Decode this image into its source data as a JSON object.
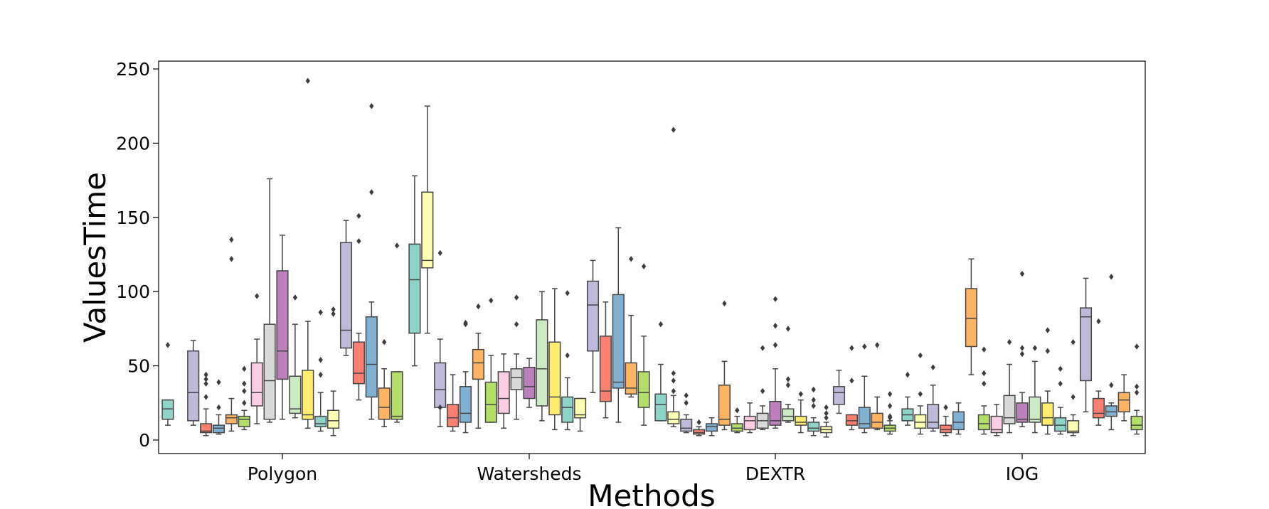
{
  "chart_data": {
    "type": "box",
    "xlabel": "Methods",
    "ylabel": "ValuesTime",
    "ylim": [
      -8,
      254
    ],
    "yticks": [
      0,
      50,
      100,
      150,
      200,
      250
    ],
    "categories": [
      "Polygon",
      "Watersheds",
      "DEXTR",
      "IOG"
    ],
    "legend": "none",
    "grid": false,
    "palette": [
      "#8dd3c7",
      "#ffffb3",
      "#bebada",
      "#fb8072",
      "#80b1d3",
      "#fdb462",
      "#b3de69",
      "#fccde5",
      "#d9d9d9",
      "#bc80bd",
      "#ccebc5",
      "#ffed6f"
    ],
    "groups": [
      {
        "category": "Polygon",
        "boxes": [
          {
            "min": 10,
            "q1": 14,
            "median": 21,
            "q3": 27,
            "max": 27,
            "outliers": [
              64
            ]
          },
          null,
          {
            "min": 10,
            "q1": 13,
            "median": 32,
            "q3": 60,
            "max": 67,
            "outliers": []
          },
          {
            "min": 3,
            "q1": 5,
            "median": 6,
            "q3": 11,
            "max": 21,
            "outliers": [
              29,
              38,
              41,
              44
            ]
          },
          {
            "min": 4,
            "q1": 5,
            "median": 8,
            "q3": 10,
            "max": 17,
            "outliers": [
              22,
              39
            ]
          },
          {
            "min": 6,
            "q1": 11,
            "median": 15,
            "q3": 17,
            "max": 28,
            "outliers": [
              122,
              135
            ]
          },
          {
            "min": 7,
            "q1": 9,
            "median": 14,
            "q3": 16,
            "max": 20,
            "outliers": [
              25,
              33,
              38,
              48
            ]
          },
          {
            "min": 11,
            "q1": 23,
            "median": 32,
            "q3": 52,
            "max": 68,
            "outliers": [
              97
            ]
          },
          {
            "min": 12,
            "q1": 14,
            "median": 40,
            "q3": 78,
            "max": 176,
            "outliers": []
          },
          {
            "min": 14,
            "q1": 41,
            "median": 60,
            "q3": 114,
            "max": 138,
            "outliers": []
          },
          {
            "min": 15,
            "q1": 18,
            "median": 21,
            "q3": 43,
            "max": 78,
            "outliers": [
              96
            ]
          },
          {
            "min": 8,
            "q1": 14,
            "median": 17,
            "q3": 47,
            "max": 80,
            "outliers": [
              242
            ]
          },
          {
            "min": 6,
            "q1": 9,
            "median": 11,
            "q3": 16,
            "max": 32,
            "outliers": [
              44,
              54,
              86
            ]
          },
          {
            "min": 3,
            "q1": 8,
            "median": 13,
            "q3": 20,
            "max": 33,
            "outliers": [
              85,
              88
            ]
          },
          {
            "min": 57,
            "q1": 62,
            "median": 74,
            "q3": 133,
            "max": 148,
            "outliers": []
          },
          {
            "min": 27,
            "q1": 38,
            "median": 45,
            "q3": 66,
            "max": 72,
            "outliers": [
              134,
              151
            ]
          },
          {
            "min": 14,
            "q1": 29,
            "median": 51,
            "q3": 83,
            "max": 93,
            "outliers": [
              167,
              225
            ]
          },
          {
            "min": 9,
            "q1": 14,
            "median": 22,
            "q3": 35,
            "max": 48,
            "outliers": [
              66
            ]
          },
          {
            "min": 12,
            "q1": 14,
            "median": 16,
            "q3": 46,
            "max": 46,
            "outliers": [
              131
            ]
          }
        ]
      },
      {
        "category": "Watersheds",
        "boxes": [
          {
            "min": 50,
            "q1": 72,
            "median": 108,
            "q3": 132,
            "max": 178,
            "outliers": []
          },
          {
            "min": 72,
            "q1": 116,
            "median": 121,
            "q3": 167,
            "max": 225,
            "outliers": []
          },
          {
            "min": 9,
            "q1": 22,
            "median": 34,
            "q3": 52,
            "max": 68,
            "outliers": [
              22,
              126
            ]
          },
          {
            "min": 6,
            "q1": 9,
            "median": 15,
            "q3": 24,
            "max": 44,
            "outliers": []
          },
          {
            "min": 5,
            "q1": 12,
            "median": 18,
            "q3": 36,
            "max": 46,
            "outliers": [
              78,
              79
            ]
          },
          {
            "min": 8,
            "q1": 41,
            "median": 52,
            "q3": 61,
            "max": 72,
            "outliers": [
              90
            ]
          },
          {
            "min": 12,
            "q1": 12,
            "median": 24,
            "q3": 39,
            "max": 57,
            "outliers": [
              94
            ]
          },
          {
            "min": 8,
            "q1": 18,
            "median": 28,
            "q3": 46,
            "max": 58,
            "outliers": []
          },
          {
            "min": 14,
            "q1": 34,
            "median": 42,
            "q3": 48,
            "max": 58,
            "outliers": [
              78,
              96
            ]
          },
          {
            "min": 22,
            "q1": 28,
            "median": 36,
            "q3": 49,
            "max": 55,
            "outliers": []
          },
          {
            "min": 13,
            "q1": 23,
            "median": 48,
            "q3": 81,
            "max": 100,
            "outliers": []
          },
          {
            "min": 7,
            "q1": 17,
            "median": 29,
            "q3": 66,
            "max": 102,
            "outliers": []
          },
          {
            "min": 7,
            "q1": 12,
            "median": 22,
            "q3": 29,
            "max": 42,
            "outliers": [
              57,
              99
            ]
          },
          {
            "min": 6,
            "q1": 15,
            "median": 17,
            "q3": 28,
            "max": 28,
            "outliers": []
          },
          {
            "min": 32,
            "q1": 60,
            "median": 91,
            "q3": 107,
            "max": 121,
            "outliers": []
          },
          {
            "min": 15,
            "q1": 26,
            "median": 33,
            "q3": 70,
            "max": 93,
            "outliers": []
          },
          {
            "min": 12,
            "q1": 35,
            "median": 39,
            "q3": 98,
            "max": 143,
            "outliers": []
          },
          {
            "min": 29,
            "q1": 31,
            "median": 35,
            "q3": 52,
            "max": 84,
            "outliers": [
              122
            ]
          },
          {
            "min": 10,
            "q1": 22,
            "median": 32,
            "q3": 46,
            "max": 70,
            "outliers": [
              117
            ]
          }
        ]
      },
      {
        "category": "DEXTR",
        "boxes": [
          {
            "min": 13,
            "q1": 13,
            "median": 24,
            "q3": 31,
            "max": 51,
            "outliers": [
              78
            ]
          },
          {
            "min": 9,
            "q1": 11,
            "median": 14,
            "q3": 19,
            "max": 30,
            "outliers": [
              33,
              40,
              45,
              209
            ]
          },
          {
            "min": 5,
            "q1": 6,
            "median": 8,
            "q3": 14,
            "max": 17,
            "outliers": [
              25,
              30
            ]
          },
          {
            "min": 3,
            "q1": 4,
            "median": 5,
            "q3": 7,
            "max": 9,
            "outliers": [
              12
            ]
          },
          {
            "min": 3,
            "q1": 6,
            "median": 9,
            "q3": 11,
            "max": 15,
            "outliers": []
          },
          {
            "min": 7,
            "q1": 10,
            "median": 14,
            "q3": 37,
            "max": 53,
            "outliers": [
              92
            ]
          },
          {
            "min": 5,
            "q1": 6,
            "median": 8,
            "q3": 11,
            "max": 16,
            "outliers": [
              20
            ]
          },
          {
            "min": 5,
            "q1": 7,
            "median": 13,
            "q3": 16,
            "max": 25,
            "outliers": []
          },
          {
            "min": 7,
            "q1": 8,
            "median": 13,
            "q3": 18,
            "max": 23,
            "outliers": [
              33,
              62
            ]
          },
          {
            "min": 8,
            "q1": 10,
            "median": 13,
            "q3": 26,
            "max": 48,
            "outliers": [
              64,
              77,
              95
            ]
          },
          {
            "min": 12,
            "q1": 13,
            "median": 16,
            "q3": 21,
            "max": 24,
            "outliers": [
              37,
              41,
              75
            ]
          },
          {
            "min": 5,
            "q1": 10,
            "median": 12,
            "q3": 16,
            "max": 27,
            "outliers": [
              31
            ]
          },
          {
            "min": 3,
            "q1": 6,
            "median": 8,
            "q3": 12,
            "max": 15,
            "outliers": [
              23,
              27,
              34
            ]
          },
          {
            "min": 2,
            "q1": 5,
            "median": 7,
            "q3": 9,
            "max": 12,
            "outliers": [
              15,
              18,
              22
            ]
          },
          {
            "min": 18,
            "q1": 24,
            "median": 32,
            "q3": 36,
            "max": 47,
            "outliers": []
          },
          {
            "min": 7,
            "q1": 10,
            "median": 13,
            "q3": 17,
            "max": 17,
            "outliers": [
              40,
              62
            ]
          },
          {
            "min": 5,
            "q1": 8,
            "median": 11,
            "q3": 22,
            "max": 43,
            "outliers": [
              63
            ]
          },
          {
            "min": 7,
            "q1": 8,
            "median": 12,
            "q3": 18,
            "max": 29,
            "outliers": [
              64
            ]
          },
          {
            "min": 4,
            "q1": 6,
            "median": 8,
            "q3": 10,
            "max": 13,
            "outliers": [
              15,
              16,
              23,
              31
            ]
          }
        ]
      },
      {
        "category": "IOG",
        "boxes": [
          {
            "min": 10,
            "q1": 13,
            "median": 17,
            "q3": 21,
            "max": 29,
            "outliers": [
              44
            ]
          },
          {
            "min": 4,
            "q1": 8,
            "median": 12,
            "q3": 17,
            "max": 23,
            "outliers": [
              31,
              57
            ]
          },
          {
            "min": 6,
            "q1": 8,
            "median": 12,
            "q3": 24,
            "max": 37,
            "outliers": [
              49
            ]
          },
          {
            "min": 3,
            "q1": 5,
            "median": 7,
            "q3": 10,
            "max": 16,
            "outliers": [
              22
            ]
          },
          {
            "min": 4,
            "q1": 7,
            "median": 12,
            "q3": 19,
            "max": 25,
            "outliers": []
          },
          {
            "min": 44,
            "q1": 63,
            "median": 82,
            "q3": 102,
            "max": 122,
            "outliers": []
          },
          {
            "min": 4,
            "q1": 7,
            "median": 11,
            "q3": 17,
            "max": 23,
            "outliers": [
              38,
              45,
              61
            ]
          },
          {
            "min": 3,
            "q1": 5,
            "median": 7,
            "q3": 16,
            "max": 24,
            "outliers": []
          },
          {
            "min": 5,
            "q1": 11,
            "median": 15,
            "q3": 30,
            "max": 51,
            "outliers": [
              66
            ]
          },
          {
            "min": 9,
            "q1": 12,
            "median": 14,
            "q3": 25,
            "max": 32,
            "outliers": [
              58,
              62,
              112
            ]
          },
          {
            "min": 5,
            "q1": 12,
            "median": 14,
            "q3": 29,
            "max": 53,
            "outliers": [
              62
            ]
          },
          {
            "min": 4,
            "q1": 10,
            "median": 15,
            "q3": 25,
            "max": 33,
            "outliers": [
              60,
              74
            ]
          },
          {
            "min": 4,
            "q1": 6,
            "median": 10,
            "q3": 15,
            "max": 22,
            "outliers": [
              38,
              48
            ]
          },
          {
            "min": 3,
            "q1": 5,
            "median": 6,
            "q3": 13,
            "max": 17,
            "outliers": [
              29,
              66
            ]
          },
          {
            "min": 19,
            "q1": 40,
            "median": 83,
            "q3": 89,
            "max": 109,
            "outliers": []
          },
          {
            "min": 10,
            "q1": 15,
            "median": 18,
            "q3": 28,
            "max": 33,
            "outliers": [
              80
            ]
          },
          {
            "min": 7,
            "q1": 16,
            "median": 19,
            "q3": 23,
            "max": 25,
            "outliers": [
              37,
              110
            ]
          },
          {
            "min": 13,
            "q1": 19,
            "median": 27,
            "q3": 32,
            "max": 44,
            "outliers": []
          },
          {
            "min": 4,
            "q1": 7,
            "median": 10,
            "q3": 16,
            "max": 20,
            "outliers": [
              32,
              36,
              63
            ]
          }
        ]
      }
    ]
  }
}
